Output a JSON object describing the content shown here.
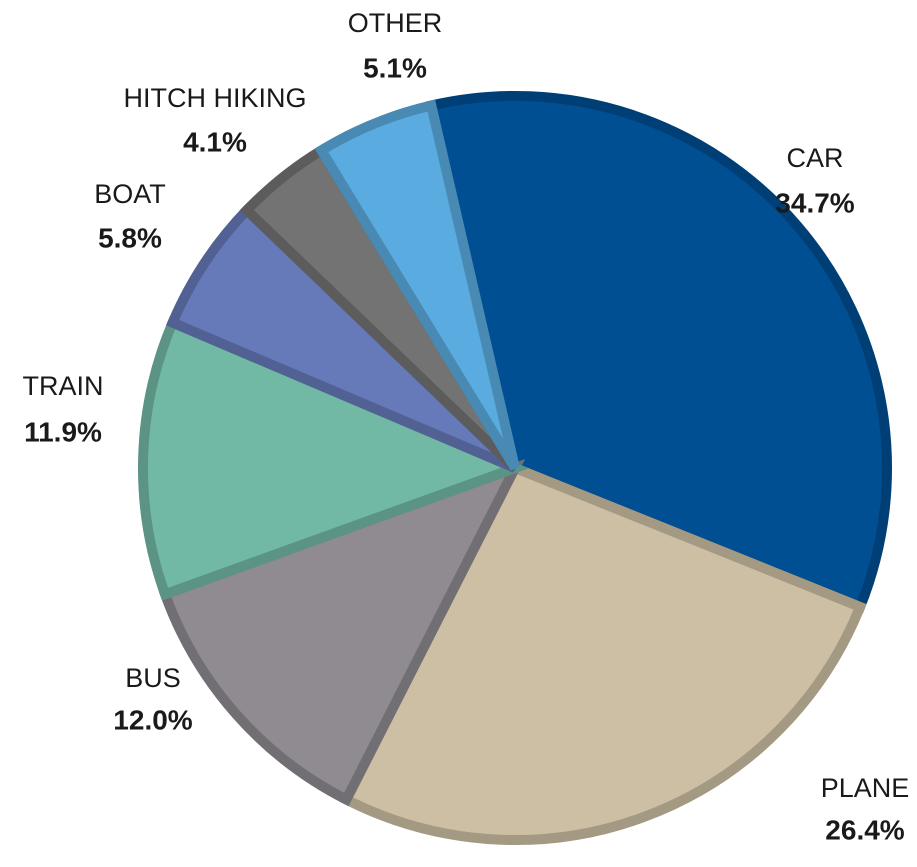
{
  "chart_data": {
    "type": "pie",
    "categories": [
      "CAR",
      "PLANE",
      "BUS",
      "TRAIN",
      "BOAT",
      "HITCH HIKING",
      "OTHER"
    ],
    "values": [
      34.7,
      26.4,
      12.0,
      11.9,
      5.8,
      4.1,
      5.1
    ],
    "value_labels": [
      "34.7%",
      "26.4%",
      "12.0%",
      "11.9%",
      "5.8%",
      "4.1%",
      "5.1%"
    ],
    "colors": [
      "#004f93",
      "#cdbfa3",
      "#8f8b91",
      "#72b9a5",
      "#6679b8",
      "#737373",
      "#5aace0"
    ]
  }
}
